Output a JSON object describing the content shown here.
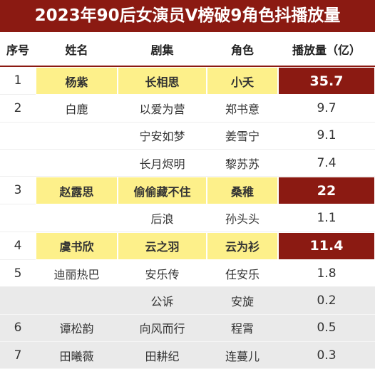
{
  "header": {
    "title": "2023年90后女演员V榜破9角色抖播放量"
  },
  "table": {
    "columns": [
      "序号",
      "姓名",
      "剧集",
      "角色",
      "播放量（亿）"
    ],
    "rows": [
      {
        "no": 1,
        "name": "杨紫",
        "drama": "长相思",
        "role": "小夭",
        "views": 35.7
      },
      {
        "no": 2,
        "name": "白鹿",
        "drama": "以爱为营",
        "role": "郑书意",
        "views": 9.7
      },
      {
        "drama": "宁安如梦",
        "role": "姜雪宁",
        "views": 9.1
      },
      {
        "drama": "长月烬明",
        "role": "黎苏苏",
        "views": 7.4
      },
      {
        "no": 3,
        "name": "赵露思",
        "drama": "偷偷藏不住",
        "role": "桑稚",
        "views": 22
      },
      {
        "drama": "后浪",
        "role": "孙头头",
        "views": 1.1
      },
      {
        "no": 4,
        "name": "虞书欣",
        "drama": "云之羽",
        "role": "云为衫",
        "views": 11.4
      },
      {
        "no": 5,
        "name": "迪丽热巴",
        "drama": "安乐传",
        "role": "任安乐",
        "views": 1.8
      },
      {
        "drama": "公诉",
        "role": "安旋",
        "views": 0.2
      },
      {
        "no": 6,
        "name": "谭松韵",
        "drama": "向风而行",
        "role": "程霄",
        "views": 0.5
      },
      {
        "no": 7,
        "name": "田曦薇",
        "drama": "田耕纪",
        "role": "连蔓儿",
        "views": 0.3
      }
    ]
  }
}
